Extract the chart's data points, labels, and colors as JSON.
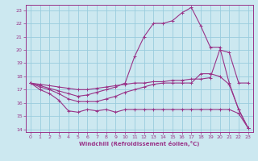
{
  "xlabel": "Windchill (Refroidissement éolien,°C)",
  "bg_color": "#cce8f0",
  "grid_color": "#99ccdd",
  "line_color": "#993388",
  "xlim": [
    -0.5,
    23.5
  ],
  "ylim": [
    13.8,
    23.4
  ],
  "xticks": [
    0,
    1,
    2,
    3,
    4,
    5,
    6,
    7,
    8,
    9,
    10,
    11,
    12,
    13,
    14,
    15,
    16,
    17,
    18,
    19,
    20,
    21,
    22,
    23
  ],
  "yticks": [
    14,
    15,
    16,
    17,
    18,
    19,
    20,
    21,
    22,
    23
  ],
  "line1_x": [
    0,
    1,
    2,
    3,
    4,
    5,
    6,
    7,
    8,
    9,
    10,
    11,
    12,
    13,
    14,
    15,
    16,
    17,
    18,
    19,
    20,
    21,
    22,
    23
  ],
  "line1_y": [
    17.5,
    17.0,
    16.7,
    16.2,
    15.4,
    15.3,
    15.5,
    15.4,
    15.5,
    15.3,
    15.5,
    15.5,
    15.5,
    15.5,
    15.5,
    15.5,
    15.5,
    15.5,
    15.5,
    15.5,
    15.5,
    15.5,
    15.2,
    14.1
  ],
  "line2_x": [
    0,
    1,
    2,
    3,
    4,
    5,
    6,
    7,
    8,
    9,
    10,
    11,
    12,
    13,
    14,
    15,
    16,
    17,
    18,
    19,
    20,
    21,
    22,
    23
  ],
  "line2_y": [
    17.5,
    17.2,
    17.0,
    16.7,
    16.3,
    16.1,
    16.1,
    16.1,
    16.3,
    16.5,
    16.8,
    17.0,
    17.2,
    17.4,
    17.5,
    17.5,
    17.5,
    17.5,
    18.2,
    18.2,
    18.0,
    17.4,
    15.5,
    14.1
  ],
  "line3_x": [
    0,
    1,
    2,
    3,
    4,
    5,
    6,
    7,
    8,
    9,
    10,
    11,
    12,
    13,
    14,
    15,
    16,
    17,
    18,
    19,
    20,
    21,
    22,
    23
  ],
  "line3_y": [
    17.5,
    17.3,
    17.1,
    16.9,
    16.7,
    16.5,
    16.6,
    16.8,
    17.0,
    17.2,
    17.5,
    19.5,
    21.0,
    22.0,
    22.0,
    22.2,
    22.8,
    23.2,
    21.8,
    20.2,
    20.2,
    17.5,
    15.5,
    14.1
  ],
  "line4_x": [
    0,
    1,
    2,
    3,
    4,
    5,
    6,
    7,
    8,
    9,
    10,
    11,
    12,
    13,
    14,
    15,
    16,
    17,
    18,
    19,
    20,
    21,
    22,
    23
  ],
  "line4_y": [
    17.5,
    17.4,
    17.3,
    17.2,
    17.1,
    17.0,
    17.0,
    17.1,
    17.2,
    17.3,
    17.4,
    17.5,
    17.5,
    17.6,
    17.6,
    17.7,
    17.7,
    17.8,
    17.8,
    17.9,
    20.0,
    19.8,
    17.5,
    17.5
  ]
}
